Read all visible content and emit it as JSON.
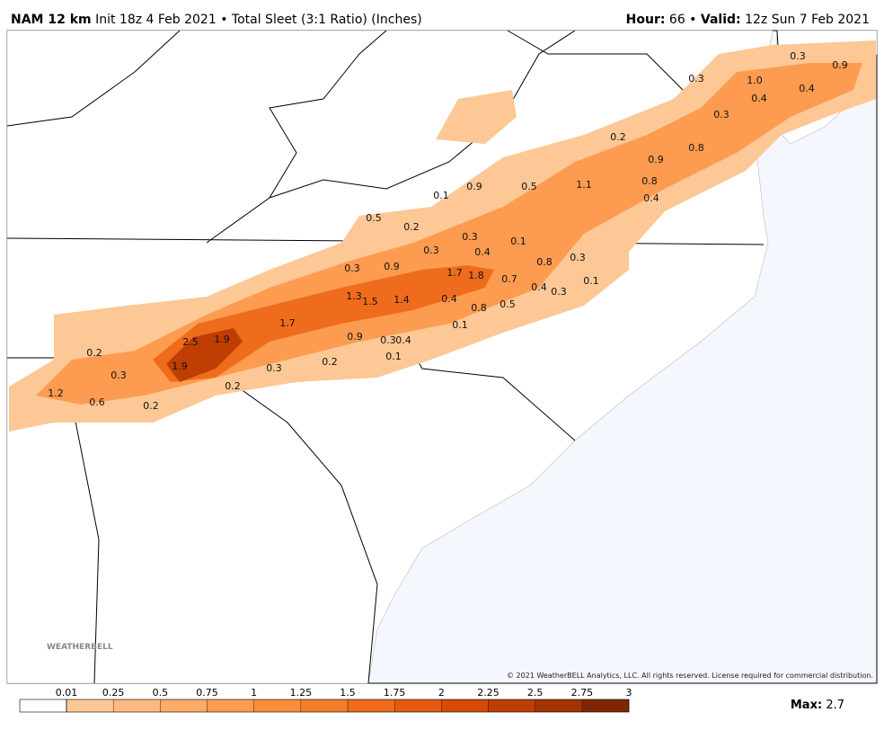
{
  "header": {
    "model": "NAM 12 km",
    "description": "Init 18z 4 Feb 2021 • Total Sleet (3:1 Ratio) (Inches)",
    "hour_label": "Hour:",
    "hour": "66 •",
    "valid_label": "Valid:",
    "valid": "12z Sun 7 Feb 2021"
  },
  "map": {
    "labels": [
      "0.3",
      "0.9",
      "0.3",
      "1.0",
      "0.4",
      "0.4",
      "0.3",
      "0.2",
      "0.8",
      "0.9",
      "0.9",
      "0.5",
      "1.1",
      "0.8",
      "0.4",
      "0.1",
      "0.5",
      "0.2",
      "0.3",
      "0.1",
      "0.4",
      "0.3",
      "0.8",
      "0.3",
      "0.3",
      "0.9",
      "1.7",
      "1.8",
      "0.7",
      "0.4",
      "0.3",
      "0.1",
      "1.3",
      "1.5",
      "1.4",
      "0.4",
      "0.8",
      "0.5",
      "1.7",
      "0.1",
      "0.9",
      "0.3",
      "0.4",
      "2.5",
      "1.9",
      "0.2",
      "0.3",
      "1.9",
      "0.3",
      "0.2",
      "0.1",
      "0.2",
      "1.2",
      "0.6",
      "0.2"
    ],
    "copyright": "© 2021 WeatherBELL Analytics, LLC. All rights reserved. License required for commercial distribution."
  },
  "legend": {
    "ticks": [
      0.01,
      0.25,
      0.5,
      0.75,
      1,
      1.25,
      1.5,
      1.75,
      2,
      2.25,
      2.5,
      2.75,
      3
    ],
    "colors": [
      "#fdc896",
      "#fdb97e",
      "#fdab67",
      "#fd9c51",
      "#f98d3c",
      "#f57e2b",
      "#ee6c1c",
      "#e35a10",
      "#d44a06",
      "#bf3e03",
      "#a33403",
      "#7f2704"
    ],
    "max_label": "Max:",
    "max": 2.7
  }
}
